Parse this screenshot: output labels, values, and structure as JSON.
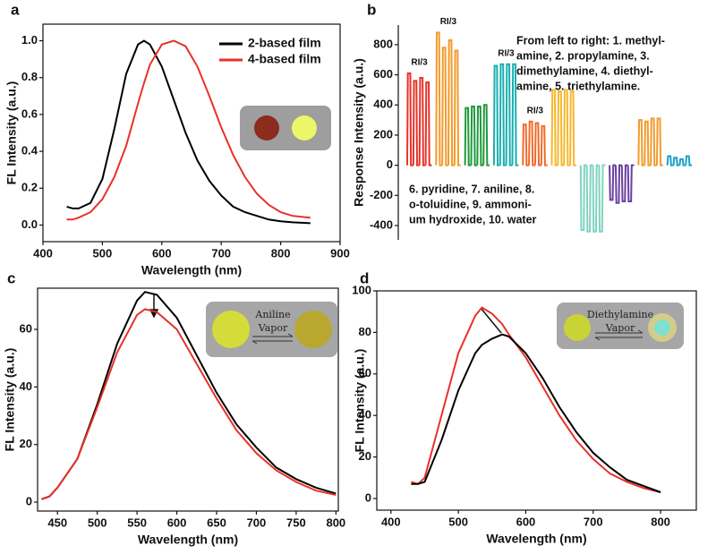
{
  "chart_data": [
    {
      "type": "line",
      "label": "a",
      "xlabel": "Wavelength (nm)",
      "ylabel": "FL Intensity (a.u.)",
      "x": [
        440,
        450,
        460,
        480,
        500,
        520,
        540,
        560,
        570,
        580,
        600,
        620,
        640,
        660,
        680,
        700,
        720,
        740,
        760,
        780,
        800,
        820,
        850
      ],
      "series": [
        {
          "name": "2-based film",
          "color": "#000000",
          "values": [
            0.1,
            0.09,
            0.09,
            0.12,
            0.25,
            0.52,
            0.82,
            0.98,
            1.0,
            0.98,
            0.86,
            0.68,
            0.5,
            0.35,
            0.24,
            0.16,
            0.1,
            0.07,
            0.05,
            0.03,
            0.02,
            0.015,
            0.01
          ]
        },
        {
          "name": "4-based film",
          "color": "#e8312a",
          "values": [
            0.03,
            0.03,
            0.04,
            0.07,
            0.14,
            0.26,
            0.43,
            0.66,
            0.77,
            0.87,
            0.98,
            1.0,
            0.97,
            0.86,
            0.7,
            0.53,
            0.38,
            0.26,
            0.17,
            0.11,
            0.07,
            0.05,
            0.04
          ]
        }
      ],
      "xlim": [
        400,
        900
      ],
      "xticks": [
        400,
        500,
        600,
        700,
        800,
        900
      ],
      "ylim": [
        -0.09,
        1.09
      ],
      "yticks": [
        {
          "value": 0,
          "label": "0.0"
        },
        0.2,
        0.4,
        0.6,
        0.8,
        {
          "value": 1,
          "label": "1.0"
        }
      ],
      "legend": "upper right"
    },
    {
      "type": "spike",
      "label": "b",
      "ylabel": "Response Intensity (a.u.)",
      "series": [
        {
          "color": "#e8312a",
          "label": "RI/3",
          "values": [
            610,
            560,
            580,
            550
          ]
        },
        {
          "color": "#f39a2b",
          "label": "RI/3",
          "values": [
            880,
            780,
            830,
            760
          ]
        },
        {
          "color": "#1f9a3c",
          "values": [
            380,
            390,
            390,
            400
          ]
        },
        {
          "color": "#1aaeb0",
          "label": "RI/3",
          "values": [
            660,
            670,
            670,
            670
          ]
        },
        {
          "color": "#f06a2a",
          "label": "RI/3",
          "values": [
            270,
            290,
            280,
            260
          ]
        },
        {
          "color": "#f7b72c",
          "values": [
            500,
            490,
            500,
            490
          ]
        },
        {
          "color": "#7fd3c0",
          "values": [
            -430,
            -440,
            -440,
            -440
          ]
        },
        {
          "color": "#6a3fa0",
          "values": [
            -230,
            -250,
            -240,
            -240
          ]
        },
        {
          "color": "#f39a2b",
          "values": [
            300,
            290,
            310,
            310
          ]
        },
        {
          "color": "#1aa0c8",
          "values": [
            60,
            50,
            40,
            60
          ]
        }
      ],
      "ylim": [
        -495,
        930
      ],
      "yticks": [
        -400,
        -200,
        0,
        200,
        400,
        600,
        800
      ],
      "notes": [
        [
          "From left to right: 1. methyl-",
          "amine, 2. propylamine, 3.",
          "dimethylamine, 4. diethyl-",
          "amine, 5. triethylamine."
        ],
        [
          "6. pyridine, 7. aniline, 8.",
          "o-toluidine, 9. ammoni-",
          "um hydroxide, 10. water"
        ]
      ]
    },
    {
      "type": "line",
      "label": "c",
      "xlabel": "Wavelength (nm)",
      "ylabel": "FL Intensity (a.u.)",
      "x": [
        430,
        440,
        450,
        475,
        500,
        525,
        550,
        560,
        575,
        600,
        625,
        650,
        675,
        700,
        725,
        750,
        775,
        800
      ],
      "series": [
        {
          "color": "#000000",
          "values": [
            1,
            2,
            5,
            15,
            34,
            55,
            70,
            73,
            72,
            64,
            51,
            38,
            27,
            19,
            12,
            8,
            5,
            3
          ]
        },
        {
          "color": "#e8312a",
          "values": [
            1,
            2,
            5,
            15,
            33,
            52,
            65,
            67,
            66,
            60,
            48,
            36,
            25,
            17,
            11,
            7,
            4,
            2.5
          ]
        }
      ],
      "xlim": [
        425,
        803
      ],
      "xticks": [
        450,
        500,
        550,
        600,
        650,
        700,
        750,
        800
      ],
      "ylim": [
        -3.1,
        74.3
      ],
      "yticks": [
        0,
        20,
        40,
        60
      ],
      "inset": [
        "Aniline",
        "Vapor"
      ]
    },
    {
      "type": "line",
      "label": "d",
      "xlabel": "Wavelength (nm)",
      "ylabel": "FL Intensity (a.u.)",
      "x": [
        430,
        440,
        450,
        475,
        500,
        525,
        535,
        550,
        565,
        575,
        600,
        625,
        650,
        675,
        700,
        725,
        750,
        775,
        800
      ],
      "series": [
        {
          "color": "#e8312a",
          "values": [
            8,
            7,
            10,
            40,
            70,
            88,
            92,
            89,
            84,
            79,
            68,
            54,
            40,
            28,
            19,
            12,
            8,
            5,
            3
          ]
        },
        {
          "color": "#000000",
          "values": [
            7,
            7,
            8,
            28,
            52,
            70,
            74,
            77,
            79,
            78,
            70,
            58,
            44,
            32,
            22,
            15,
            9,
            6,
            3
          ]
        }
      ],
      "xlim": [
        379,
        853
      ],
      "xticks": [
        400,
        500,
        600,
        700,
        800
      ],
      "ylim": [
        -5.6,
        100
      ],
      "yticks": [
        0,
        20,
        40,
        60,
        80,
        100
      ],
      "inset": [
        "Diethylamine",
        "Vapor"
      ]
    }
  ]
}
